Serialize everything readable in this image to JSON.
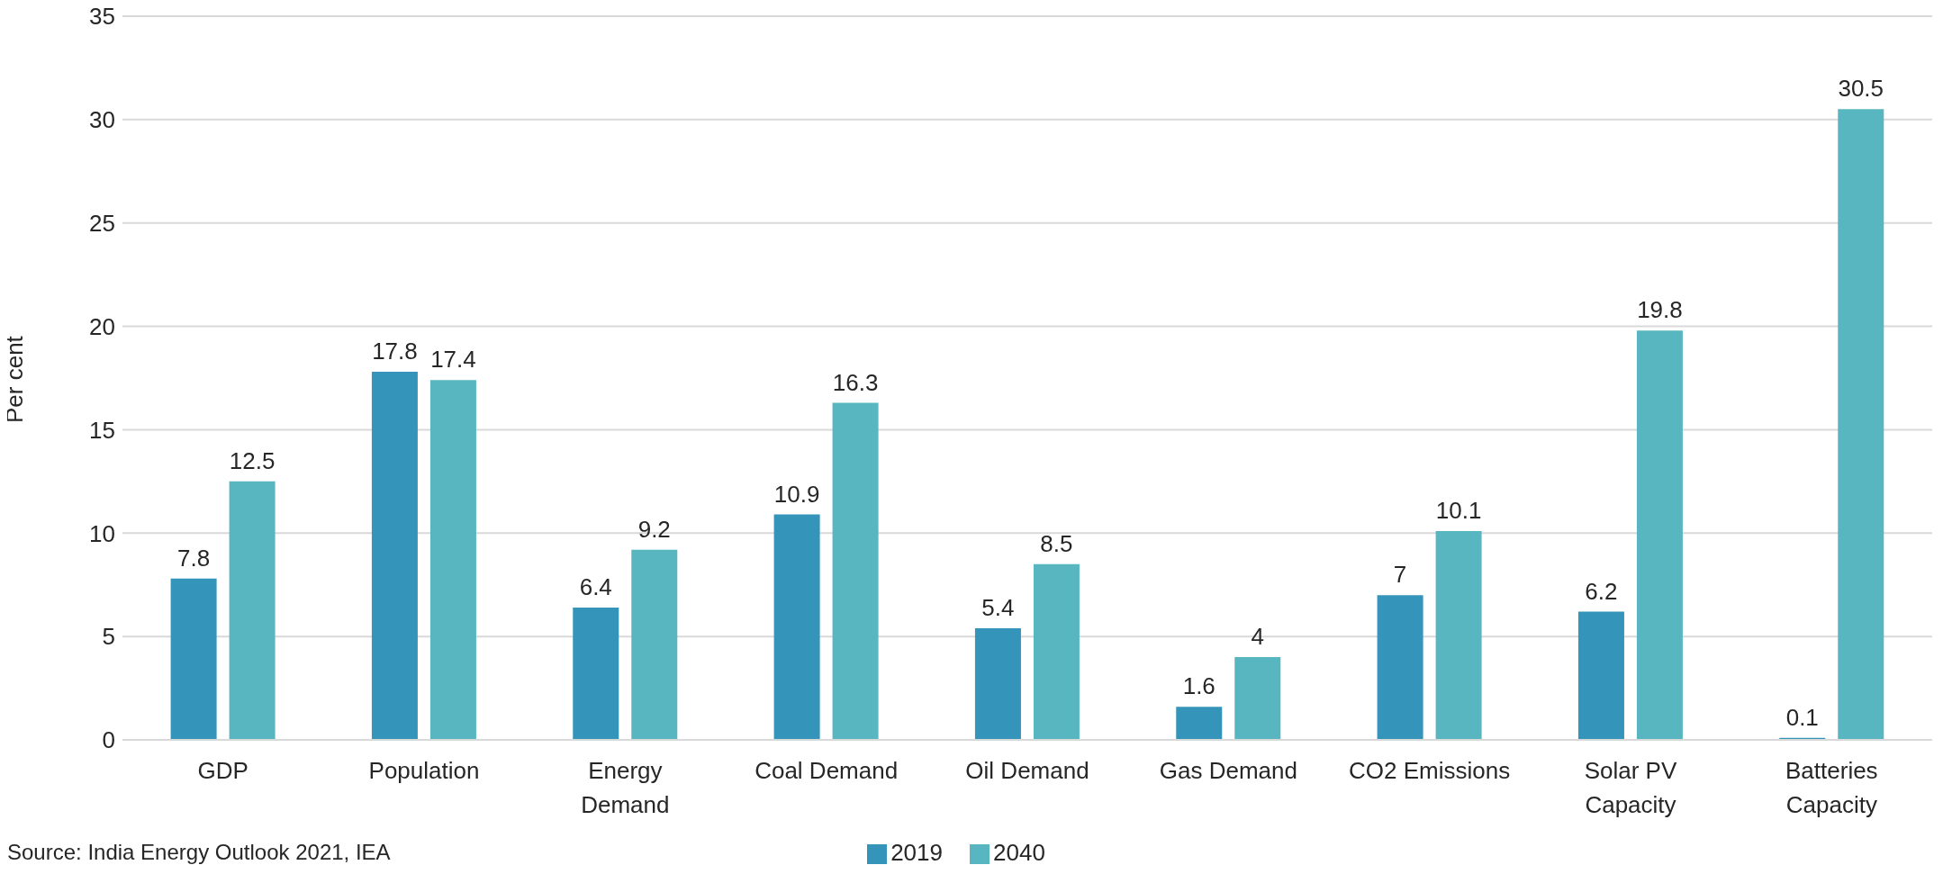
{
  "chart_data": {
    "type": "bar",
    "ylabel": "Per cent",
    "categories": [
      "GDP",
      "Population",
      "Energy\nDemand",
      "Coal Demand",
      "Oil Demand",
      "Gas Demand",
      "CO2 Emissions",
      "Solar PV\nCapacity",
      "Batteries\nCapacity"
    ],
    "series": [
      {
        "name": "2019",
        "color": "#3494ba",
        "values": [
          7.8,
          17.8,
          6.4,
          10.9,
          5.4,
          1.6,
          7,
          6.2,
          0.1
        ]
      },
      {
        "name": "2040",
        "color": "#58b6c0",
        "values": [
          12.5,
          17.4,
          9.2,
          16.3,
          8.5,
          4,
          10.1,
          19.8,
          30.5
        ]
      }
    ],
    "ylim": [
      0,
      35
    ],
    "yticks": [
      0,
      5,
      10,
      15,
      20,
      25,
      30,
      35
    ],
    "grid": "y",
    "legend": "bottom",
    "data_labels": true,
    "annotations": [
      "Source: India Energy Outlook 2021, IEA"
    ]
  }
}
